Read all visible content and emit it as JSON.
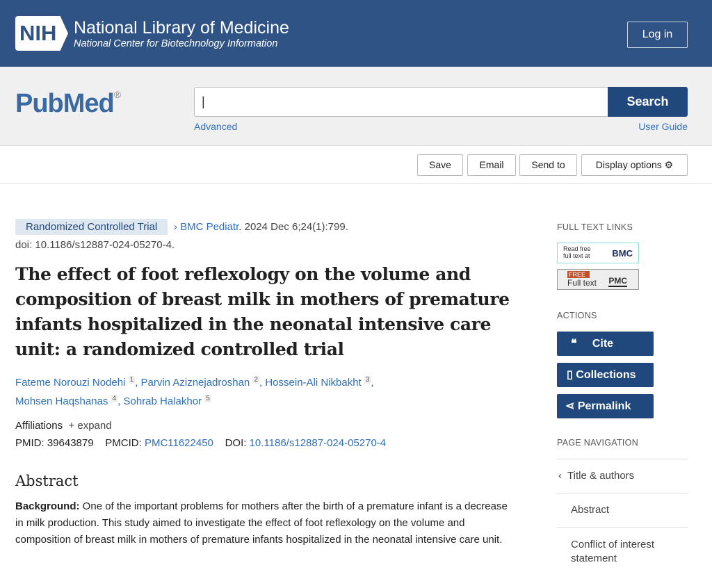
{
  "header": {
    "badge": "NIH",
    "title": "National Library of Medicine",
    "subtitle": "National Center for Biotechnology Information",
    "login": "Log in"
  },
  "search": {
    "logo": "PubMed",
    "reg": "®",
    "value": "|",
    "button": "Search",
    "advanced": "Advanced",
    "user_guide": "User Guide"
  },
  "toolbar": {
    "save": "Save",
    "email": "Email",
    "send_to": "Send to",
    "display": "Display options"
  },
  "article": {
    "type": "Randomized Controlled Trial",
    "journal": "BMC Pediatr",
    "citation": ". 2024 Dec 6;24(1):799.",
    "doi_line": "doi: 10.1186/s12887-024-05270-4.",
    "title": "The effect of foot reflexology on the volume and composition of breast milk in mothers of premature infants hospitalized in the neonatal intensive care unit: a randomized controlled trial",
    "authors": [
      {
        "name": "Fateme Norouzi Nodehi",
        "sup": "1"
      },
      {
        "name": "Parvin Aziznejadroshan",
        "sup": "2"
      },
      {
        "name": "Hossein-Ali Nikbakht",
        "sup": "3"
      },
      {
        "name": "Mohsen Haqshanas",
        "sup": "4"
      },
      {
        "name": "Sohrab Halakhor",
        "sup": "5"
      }
    ],
    "affiliations": "Affiliations",
    "expand": "+ expand",
    "pmid_label": "PMID:",
    "pmid": "39643879",
    "pmcid_label": "PMCID:",
    "pmcid": "PMC11622450",
    "doi_label": "DOI:",
    "doi": "10.1186/s12887-024-05270-4",
    "abstract_heading": "Abstract",
    "bg_label": "Background:",
    "bg_text": " One of the important problems for mothers after the birth of a premature infant is a decrease in milk production. This study aimed to investigate the effect of foot reflexology on the volume and composition of breast milk in mothers of premature infants hospitalized in the neonatal intensive care unit."
  },
  "sidebar": {
    "full_text_heading": "FULL TEXT LINKS",
    "bmc_read": "Read free",
    "bmc_full": "full text at",
    "bmc": "BMC",
    "pmc_free": "FREE",
    "pmc_full": "Full text",
    "pmc": "PMC",
    "actions_heading": "ACTIONS",
    "cite": "Cite",
    "collections": "Collections",
    "permalink": "Permalink",
    "nav_heading": "PAGE NAVIGATION",
    "nav": [
      "Title & authors",
      "Abstract",
      "Conflict of interest statement"
    ]
  }
}
